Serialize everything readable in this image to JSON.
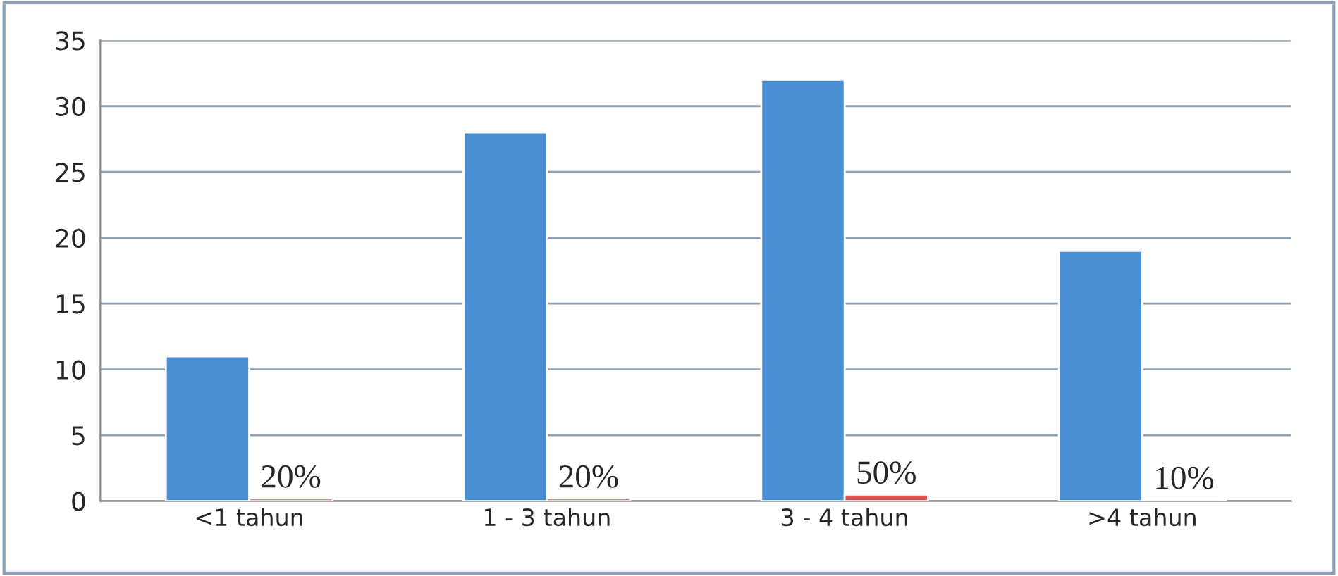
{
  "chart_data": {
    "type": "bar",
    "categories": [
      "<1 tahun",
      "1 - 3 tahun",
      "3 - 4 tahun",
      ">4 tahun"
    ],
    "series": [
      {
        "color": "#4a8fd4",
        "values": [
          11,
          28,
          32,
          19
        ]
      },
      {
        "color": "#d9534f",
        "values": [
          0.2,
          0.2,
          0.5,
          0.1
        ],
        "value_labels": [
          "20%",
          "20%",
          "50%",
          "10%"
        ]
      }
    ],
    "ylim": [
      0,
      35
    ],
    "yticks": [
      0,
      5,
      10,
      15,
      20,
      25,
      30,
      35
    ],
    "grid": "y"
  }
}
